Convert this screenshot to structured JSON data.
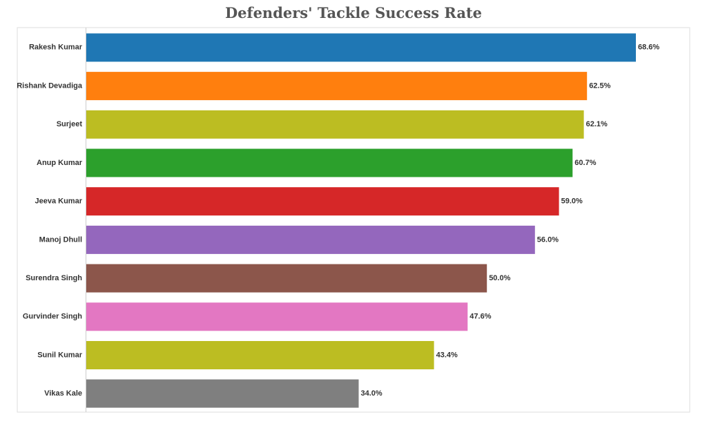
{
  "chart_data": {
    "type": "bar",
    "orientation": "horizontal",
    "title": "Defenders' Tackle Success Rate",
    "xlabel": "",
    "ylabel": "",
    "xlim": [
      0,
      75
    ],
    "grid": false,
    "categories": [
      "Rakesh Kumar",
      "Rishank Devadiga",
      "Surjeet",
      "Anup Kumar",
      "Jeeva Kumar",
      "Manoj Dhull",
      "Surendra Singh",
      "Gurvinder Singh",
      "Sunil Kumar",
      "Vikas Kale"
    ],
    "values": [
      68.6,
      62.5,
      62.1,
      60.7,
      59.0,
      56.0,
      50.0,
      47.6,
      43.4,
      34.0
    ],
    "value_labels": [
      "68.6%",
      "62.5%",
      "62.1%",
      "60.7%",
      "59.0%",
      "56.0%",
      "50.0%",
      "47.6%",
      "43.4%",
      "34.0%"
    ],
    "colors": [
      "#1f77b4",
      "#ff7f0e",
      "#bcbd22",
      "#2ca02c",
      "#d62728",
      "#9467bd",
      "#8c564b",
      "#e377c2",
      "#bcbd22",
      "#7f7f7f"
    ]
  }
}
